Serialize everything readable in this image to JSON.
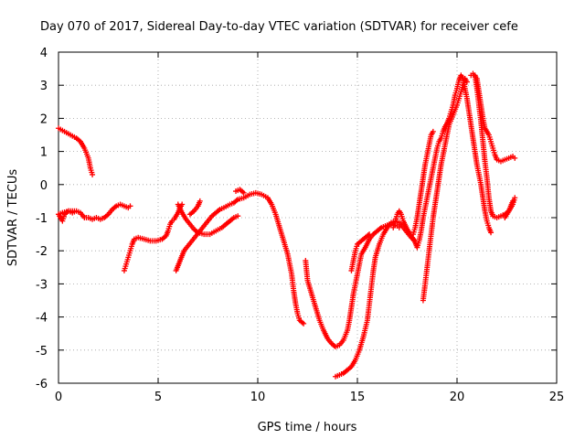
{
  "chart_data": {
    "type": "scatter",
    "title": "Day 070 of 2017, Sidereal Day-to-day VTEC variation (SDTVAR) for receiver cefe",
    "xlabel": "GPS time / hours",
    "ylabel": "SDTVAR / TECUs",
    "xlim": [
      0,
      25
    ],
    "ylim": [
      -6,
      4
    ],
    "xticks": [
      "0",
      "5",
      "10",
      "15",
      "20",
      "25"
    ],
    "yticks": [
      "-6",
      "-5",
      "-4",
      "-3",
      "-2",
      "-1",
      "0",
      "1",
      "2",
      "3",
      "4"
    ],
    "grid": true,
    "marker": "+",
    "color": "#ff0000",
    "series": [
      {
        "points": [
          [
            0,
            1.7
          ],
          [
            0.3,
            1.6
          ],
          [
            0.6,
            1.5
          ],
          [
            0.9,
            1.4
          ],
          [
            1.1,
            1.3
          ],
          [
            1.3,
            1.1
          ],
          [
            1.5,
            0.8
          ],
          [
            1.6,
            0.5
          ],
          [
            1.7,
            0.3
          ]
        ]
      },
      {
        "points": [
          [
            0,
            -0.9
          ],
          [
            0.2,
            -1.1
          ],
          [
            0.3,
            -0.9
          ],
          [
            0.5,
            -0.8
          ],
          [
            0.7,
            -0.85
          ],
          [
            0.9,
            -0.8
          ],
          [
            1.1,
            -0.85
          ],
          [
            1.3,
            -1.0
          ],
          [
            1.5,
            -1.0
          ],
          [
            1.7,
            -1.05
          ],
          [
            1.9,
            -1.0
          ],
          [
            2.1,
            -1.05
          ],
          [
            2.3,
            -1.0
          ],
          [
            2.5,
            -0.9
          ],
          [
            2.7,
            -0.75
          ],
          [
            2.9,
            -0.65
          ],
          [
            3.1,
            -0.6
          ],
          [
            3.3,
            -0.65
          ],
          [
            3.5,
            -0.7
          ],
          [
            3.6,
            -0.65
          ]
        ]
      },
      {
        "points": [
          [
            0,
            -0.9
          ],
          [
            0.2,
            -0.85
          ],
          [
            0.5,
            -0.8
          ],
          [
            0.8,
            -0.8
          ]
        ]
      },
      {
        "points": [
          [
            3.3,
            -2.6
          ],
          [
            3.4,
            -2.4
          ],
          [
            3.5,
            -2.2
          ],
          [
            3.6,
            -2.0
          ],
          [
            3.7,
            -1.8
          ],
          [
            3.8,
            -1.65
          ],
          [
            4.0,
            -1.6
          ],
          [
            4.3,
            -1.65
          ],
          [
            4.6,
            -1.7
          ],
          [
            4.9,
            -1.7
          ],
          [
            5.2,
            -1.65
          ],
          [
            5.4,
            -1.55
          ],
          [
            5.5,
            -1.4
          ],
          [
            5.6,
            -1.2
          ],
          [
            5.7,
            -1.1
          ],
          [
            5.8,
            -1.05
          ],
          [
            5.9,
            -0.95
          ],
          [
            6.0,
            -0.85
          ],
          [
            6.1,
            -0.7
          ],
          [
            6.2,
            -0.6
          ]
        ]
      },
      {
        "points": [
          [
            6.0,
            -0.6
          ],
          [
            6.2,
            -0.85
          ],
          [
            6.4,
            -1.05
          ],
          [
            6.6,
            -1.2
          ],
          [
            6.8,
            -1.35
          ],
          [
            7.0,
            -1.45
          ],
          [
            7.3,
            -1.5
          ],
          [
            7.6,
            -1.5
          ],
          [
            7.9,
            -1.4
          ],
          [
            8.2,
            -1.3
          ],
          [
            8.5,
            -1.15
          ],
          [
            8.8,
            -1.0
          ],
          [
            9.0,
            -0.95
          ]
        ]
      },
      {
        "points": [
          [
            5.9,
            -2.6
          ],
          [
            6.0,
            -2.45
          ],
          [
            6.1,
            -2.3
          ],
          [
            6.2,
            -2.15
          ],
          [
            6.3,
            -2.0
          ],
          [
            6.5,
            -1.85
          ],
          [
            6.7,
            -1.7
          ],
          [
            6.9,
            -1.55
          ],
          [
            7.1,
            -1.4
          ],
          [
            7.3,
            -1.25
          ],
          [
            7.5,
            -1.1
          ],
          [
            7.7,
            -0.95
          ],
          [
            7.9,
            -0.85
          ],
          [
            8.1,
            -0.75
          ],
          [
            8.3,
            -0.7
          ],
          [
            8.6,
            -0.6
          ],
          [
            8.8,
            -0.55
          ],
          [
            9.0,
            -0.45
          ],
          [
            9.3,
            -0.4
          ],
          [
            9.6,
            -0.3
          ],
          [
            9.9,
            -0.25
          ],
          [
            10.2,
            -0.3
          ],
          [
            10.5,
            -0.4
          ],
          [
            10.7,
            -0.6
          ],
          [
            10.9,
            -0.9
          ],
          [
            11.1,
            -1.3
          ],
          [
            11.3,
            -1.7
          ],
          [
            11.5,
            -2.1
          ],
          [
            11.7,
            -2.7
          ],
          [
            11.8,
            -3.2
          ],
          [
            11.9,
            -3.6
          ],
          [
            12.0,
            -3.9
          ],
          [
            12.1,
            -4.1
          ],
          [
            12.3,
            -4.2
          ]
        ]
      },
      {
        "points": [
          [
            6.6,
            -0.9
          ],
          [
            6.8,
            -0.8
          ],
          [
            7.0,
            -0.65
          ],
          [
            7.1,
            -0.5
          ]
        ]
      },
      {
        "points": [
          [
            8.9,
            -0.2
          ],
          [
            9.1,
            -0.15
          ],
          [
            9.3,
            -0.25
          ]
        ]
      },
      {
        "points": [
          [
            12.4,
            -2.3
          ],
          [
            12.5,
            -2.9
          ],
          [
            12.7,
            -3.3
          ],
          [
            12.9,
            -3.7
          ],
          [
            13.1,
            -4.1
          ],
          [
            13.3,
            -4.4
          ],
          [
            13.5,
            -4.65
          ],
          [
            13.7,
            -4.8
          ],
          [
            13.9,
            -4.9
          ],
          [
            14.1,
            -4.85
          ],
          [
            14.3,
            -4.7
          ],
          [
            14.5,
            -4.4
          ],
          [
            14.6,
            -4.1
          ],
          [
            14.7,
            -3.7
          ],
          [
            14.8,
            -3.3
          ],
          [
            14.9,
            -3.0
          ],
          [
            15.0,
            -2.7
          ],
          [
            15.1,
            -2.4
          ],
          [
            15.2,
            -2.1
          ],
          [
            15.4,
            -1.9
          ],
          [
            15.6,
            -1.65
          ],
          [
            15.8,
            -1.5
          ],
          [
            16.0,
            -1.4
          ],
          [
            16.2,
            -1.3
          ],
          [
            16.4,
            -1.25
          ],
          [
            16.6,
            -1.2
          ],
          [
            16.8,
            -1.2
          ],
          [
            17.0,
            -1.25
          ],
          [
            17.1,
            -1.3
          ]
        ]
      },
      {
        "points": [
          [
            13.9,
            -5.8
          ],
          [
            14.1,
            -5.75
          ],
          [
            14.3,
            -5.7
          ],
          [
            14.5,
            -5.6
          ],
          [
            14.7,
            -5.5
          ],
          [
            14.9,
            -5.3
          ],
          [
            15.1,
            -5.0
          ],
          [
            15.3,
            -4.6
          ],
          [
            15.5,
            -4.1
          ],
          [
            15.6,
            -3.6
          ],
          [
            15.7,
            -3.1
          ],
          [
            15.8,
            -2.6
          ],
          [
            15.9,
            -2.2
          ],
          [
            16.1,
            -1.8
          ],
          [
            16.3,
            -1.5
          ],
          [
            16.5,
            -1.3
          ],
          [
            16.7,
            -1.15
          ],
          [
            16.9,
            -1.1
          ],
          [
            17.1,
            -1.15
          ],
          [
            17.3,
            -1.3
          ],
          [
            17.5,
            -1.45
          ],
          [
            17.7,
            -1.6
          ],
          [
            17.9,
            -1.7
          ]
        ]
      },
      {
        "points": [
          [
            14.7,
            -2.6
          ],
          [
            14.8,
            -2.3
          ],
          [
            14.9,
            -2.0
          ],
          [
            15.0,
            -1.8
          ],
          [
            15.2,
            -1.7
          ],
          [
            15.4,
            -1.6
          ],
          [
            15.6,
            -1.5
          ]
        ]
      },
      {
        "points": [
          [
            16.8,
            -1.3
          ],
          [
            16.9,
            -1.1
          ],
          [
            17.0,
            -0.9
          ],
          [
            17.1,
            -0.8
          ],
          [
            17.2,
            -0.9
          ],
          [
            17.3,
            -1.1
          ],
          [
            17.5,
            -1.35
          ],
          [
            17.7,
            -1.55
          ],
          [
            17.9,
            -1.75
          ],
          [
            18.0,
            -1.9
          ],
          [
            18.1,
            -1.7
          ],
          [
            18.2,
            -1.4
          ],
          [
            18.3,
            -1.0
          ],
          [
            18.4,
            -0.7
          ],
          [
            18.5,
            -0.4
          ],
          [
            18.6,
            -0.1
          ],
          [
            18.7,
            0.2
          ],
          [
            18.8,
            0.5
          ],
          [
            18.9,
            0.8
          ],
          [
            19.0,
            1.1
          ],
          [
            19.1,
            1.3
          ],
          [
            19.2,
            1.4
          ],
          [
            19.3,
            1.6
          ],
          [
            19.4,
            1.75
          ],
          [
            19.5,
            1.85
          ],
          [
            19.6,
            2.0
          ],
          [
            19.7,
            2.2
          ],
          [
            19.8,
            2.4
          ],
          [
            19.9,
            2.7
          ],
          [
            20.0,
            2.9
          ],
          [
            20.1,
            3.15
          ],
          [
            20.2,
            3.3
          ],
          [
            20.3,
            3.2
          ],
          [
            20.4,
            2.9
          ],
          [
            20.5,
            2.6
          ],
          [
            20.6,
            2.2
          ],
          [
            20.7,
            1.8
          ],
          [
            20.8,
            1.4
          ],
          [
            20.9,
            1.0
          ],
          [
            21.0,
            0.6
          ],
          [
            21.1,
            0.3
          ],
          [
            21.2,
            0.0
          ],
          [
            21.3,
            -0.4
          ],
          [
            21.4,
            -0.8
          ],
          [
            21.5,
            -1.1
          ],
          [
            21.6,
            -1.3
          ],
          [
            21.7,
            -1.45
          ]
        ]
      },
      {
        "points": [
          [
            18.3,
            -3.5
          ],
          [
            18.4,
            -3.0
          ],
          [
            18.5,
            -2.5
          ],
          [
            18.6,
            -2.0
          ],
          [
            18.7,
            -1.5
          ],
          [
            18.8,
            -1.0
          ],
          [
            18.9,
            -0.6
          ],
          [
            19.0,
            -0.2
          ],
          [
            19.1,
            0.2
          ],
          [
            19.2,
            0.6
          ],
          [
            19.3,
            0.9
          ],
          [
            19.4,
            1.2
          ],
          [
            19.5,
            1.5
          ],
          [
            19.6,
            1.8
          ],
          [
            19.8,
            2.1
          ],
          [
            20.0,
            2.4
          ],
          [
            20.1,
            2.6
          ],
          [
            20.2,
            2.8
          ],
          [
            20.3,
            3.0
          ],
          [
            20.4,
            3.2
          ],
          [
            20.5,
            3.1
          ]
        ]
      },
      {
        "points": [
          [
            17.8,
            -1.5
          ],
          [
            17.9,
            -1.3
          ],
          [
            18.0,
            -1.0
          ],
          [
            18.1,
            -0.6
          ],
          [
            18.2,
            -0.2
          ],
          [
            18.3,
            0.2
          ],
          [
            18.4,
            0.6
          ],
          [
            18.5,
            0.9
          ],
          [
            18.6,
            1.2
          ],
          [
            18.7,
            1.5
          ],
          [
            18.8,
            1.6
          ]
        ]
      },
      {
        "points": [
          [
            20.7,
            3.3
          ],
          [
            20.8,
            3.35
          ],
          [
            21.0,
            3.2
          ],
          [
            21.1,
            2.8
          ],
          [
            21.2,
            2.4
          ],
          [
            21.3,
            2.0
          ],
          [
            21.4,
            1.7
          ],
          [
            21.6,
            1.5
          ],
          [
            21.7,
            1.3
          ],
          [
            21.8,
            1.1
          ],
          [
            21.9,
            0.9
          ],
          [
            22.0,
            0.75
          ],
          [
            22.2,
            0.7
          ],
          [
            22.4,
            0.75
          ],
          [
            22.6,
            0.8
          ],
          [
            22.8,
            0.85
          ],
          [
            22.9,
            0.8
          ]
        ]
      },
      {
        "points": [
          [
            20.9,
            3.3
          ],
          [
            21.0,
            2.9
          ],
          [
            21.1,
            2.4
          ],
          [
            21.2,
            1.9
          ],
          [
            21.3,
            1.3
          ],
          [
            21.4,
            0.7
          ],
          [
            21.5,
            0.2
          ],
          [
            21.6,
            -0.4
          ],
          [
            21.7,
            -0.8
          ],
          [
            21.8,
            -0.95
          ],
          [
            22.0,
            -1.0
          ],
          [
            22.2,
            -0.95
          ],
          [
            22.4,
            -0.9
          ],
          [
            22.6,
            -0.8
          ],
          [
            22.7,
            -0.65
          ],
          [
            22.8,
            -0.5
          ]
        ]
      },
      {
        "points": [
          [
            22.4,
            -1.0
          ],
          [
            22.6,
            -0.8
          ],
          [
            22.8,
            -0.6
          ],
          [
            22.9,
            -0.4
          ]
        ]
      }
    ]
  }
}
